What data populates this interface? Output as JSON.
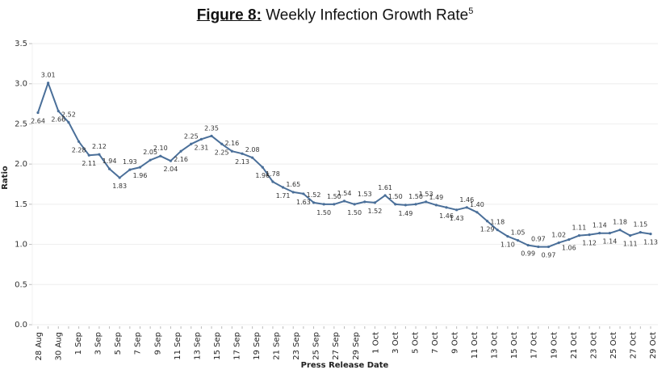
{
  "title": {
    "prefix": "Figure 8:",
    "text": " Weekly Infection Growth Rate",
    "superscript": "5"
  },
  "chart_data": {
    "type": "line",
    "title": "Figure 8: Weekly Infection Growth Rate",
    "xlabel": "Press Release Date",
    "ylabel": "Ratio",
    "ylim": [
      0,
      3.5
    ],
    "yticks": [
      "0.0",
      "0.5",
      "1.0",
      "1.5",
      "2.0",
      "2.5",
      "3.0",
      "3.5"
    ],
    "yticks_values": [
      0,
      0.5,
      1.0,
      1.5,
      2.0,
      2.5,
      3.0,
      3.5
    ],
    "grid": true,
    "line_color": "#4a6f99",
    "xtick_labels": [
      "28 Aug",
      "30 Aug",
      "1 Sep",
      "3 Sep",
      "5 Sep",
      "7 Sep",
      "9 Sep",
      "11 Sep",
      "13 Sep",
      "15 Sep",
      "17 Sep",
      "19 Sep",
      "21 Sep",
      "23 Sep",
      "25 Sep",
      "27 Sep",
      "29 Sep",
      "1 Oct",
      "3 Oct",
      "5 Oct",
      "7 Oct",
      "9 Oct",
      "11 Oct",
      "13 Oct",
      "15 Oct",
      "17 Oct",
      "19 Oct",
      "21 Oct",
      "23 Oct",
      "25 Oct",
      "27 Oct",
      "29 Oct"
    ],
    "series": [
      {
        "name": "Ratio",
        "values": [
          2.64,
          3.01,
          2.66,
          2.52,
          2.28,
          2.11,
          2.12,
          1.94,
          1.83,
          1.93,
          1.96,
          2.05,
          2.1,
          2.04,
          2.16,
          2.25,
          2.31,
          2.35,
          2.25,
          2.16,
          2.13,
          2.08,
          1.96,
          1.78,
          1.71,
          1.65,
          1.63,
          1.52,
          1.5,
          1.5,
          1.54,
          1.5,
          1.53,
          1.52,
          1.61,
          1.5,
          1.49,
          1.5,
          1.53,
          1.49,
          1.46,
          1.43,
          1.46,
          1.4,
          1.29,
          1.18,
          1.1,
          1.05,
          0.99,
          0.97,
          0.97,
          1.02,
          1.06,
          1.11,
          1.12,
          1.14,
          1.14,
          1.18,
          1.11,
          1.15,
          1.13
        ]
      }
    ]
  }
}
